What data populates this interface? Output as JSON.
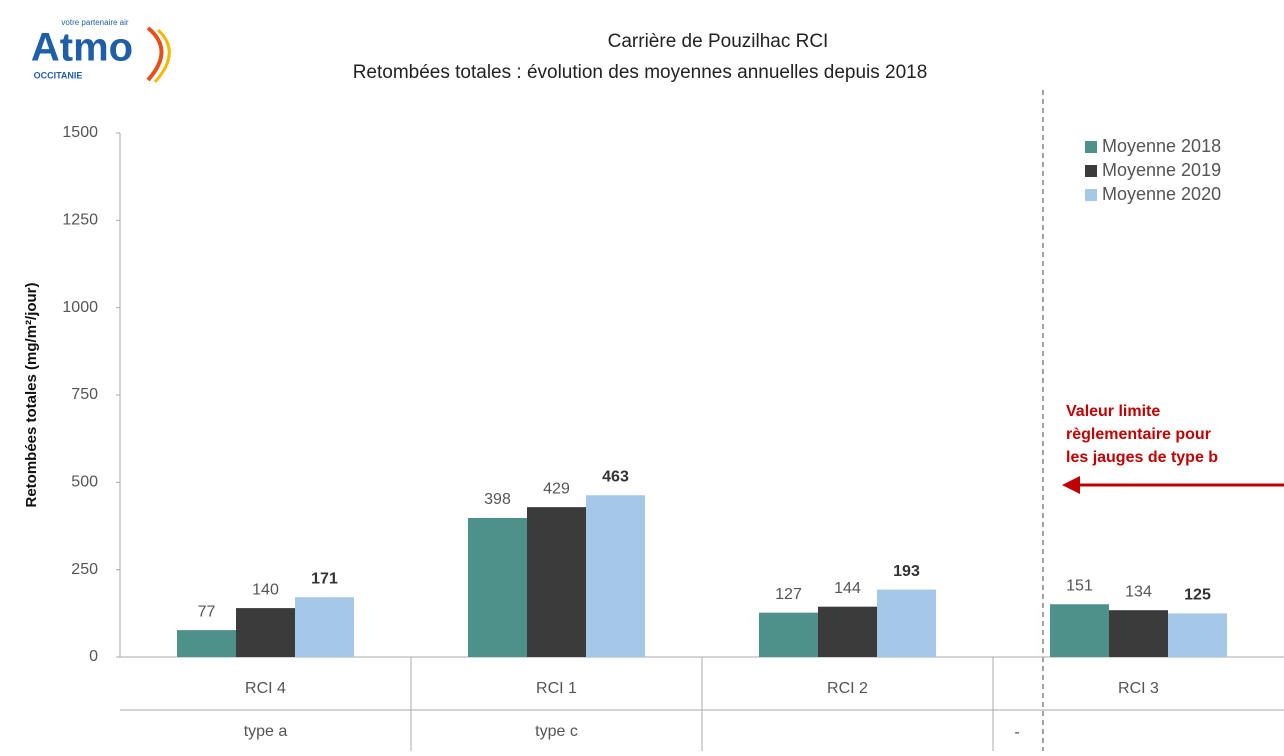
{
  "logo": {
    "name": "Atmo",
    "tagline": "votre partenaire air",
    "region": "OCCITANIE"
  },
  "chart_data": {
    "type": "bar",
    "title": "Carrière de Pouzilhac RCI",
    "subtitle": "Retombées totales  : évolution des moyennes annuelles depuis 2018",
    "y_label": "Retombées totales (mg/m²/jour)",
    "categories": [
      "RCI 4",
      "RCI 1",
      "RCI 2",
      "RCI 3"
    ],
    "sub_labels": [
      "type a",
      "type c",
      null,
      null
    ],
    "series": [
      {
        "name": "Moyenne 2018",
        "color": "#4e918a",
        "values": [
          77,
          398,
          127,
          151
        ]
      },
      {
        "name": "Moyenne 2019",
        "color": "#3b3b3b",
        "values": [
          140,
          429,
          144,
          134
        ]
      },
      {
        "name": "Moyenne 2020",
        "color": "#a6c8e8",
        "values": [
          171,
          463,
          193,
          125
        ]
      }
    ],
    "ylim": [
      0,
      1500
    ],
    "yticks": [
      0,
      250,
      500,
      750,
      1000,
      1250,
      1500
    ],
    "grid": false,
    "legend": "upper right",
    "annotation": [
      "Valeur limite",
      "règlementaire pour",
      "les jauges de type b"
    ],
    "note": "-"
  }
}
